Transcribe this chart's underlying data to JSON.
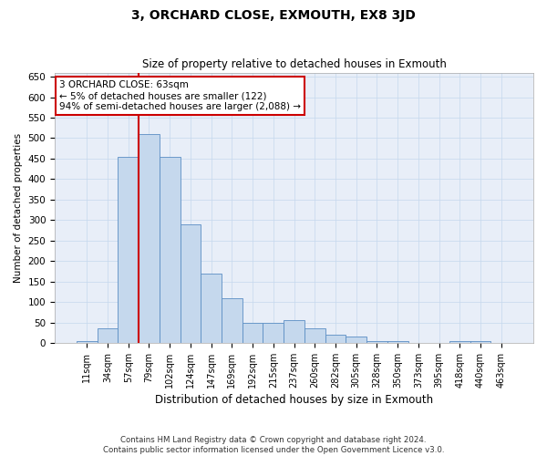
{
  "title": "3, ORCHARD CLOSE, EXMOUTH, EX8 3JD",
  "subtitle": "Size of property relative to detached houses in Exmouth",
  "xlabel": "Distribution of detached houses by size in Exmouth",
  "ylabel": "Number of detached properties",
  "categories": [
    "11sqm",
    "34sqm",
    "57sqm",
    "79sqm",
    "102sqm",
    "124sqm",
    "147sqm",
    "169sqm",
    "192sqm",
    "215sqm",
    "237sqm",
    "260sqm",
    "282sqm",
    "305sqm",
    "328sqm",
    "350sqm",
    "373sqm",
    "395sqm",
    "418sqm",
    "440sqm",
    "463sqm"
  ],
  "values": [
    5,
    35,
    455,
    510,
    455,
    290,
    170,
    110,
    50,
    50,
    55,
    35,
    20,
    15,
    5,
    5,
    0,
    0,
    5,
    5,
    0
  ],
  "bar_color": "#c5d8ed",
  "bar_edge_color": "#5b8ec4",
  "vline_index": 3,
  "vline_color": "#cc0000",
  "annotation_text": "3 ORCHARD CLOSE: 63sqm\n← 5% of detached houses are smaller (122)\n94% of semi-detached houses are larger (2,088) →",
  "annotation_box_color": "#ffffff",
  "annotation_box_edge": "#cc0000",
  "ylim": [
    0,
    660
  ],
  "yticks": [
    0,
    50,
    100,
    150,
    200,
    250,
    300,
    350,
    400,
    450,
    500,
    550,
    600,
    650
  ],
  "grid_color": "#c5d8ed",
  "background_color": "#e8eef8",
  "footer_line1": "Contains HM Land Registry data © Crown copyright and database right 2024.",
  "footer_line2": "Contains public sector information licensed under the Open Government Licence v3.0."
}
